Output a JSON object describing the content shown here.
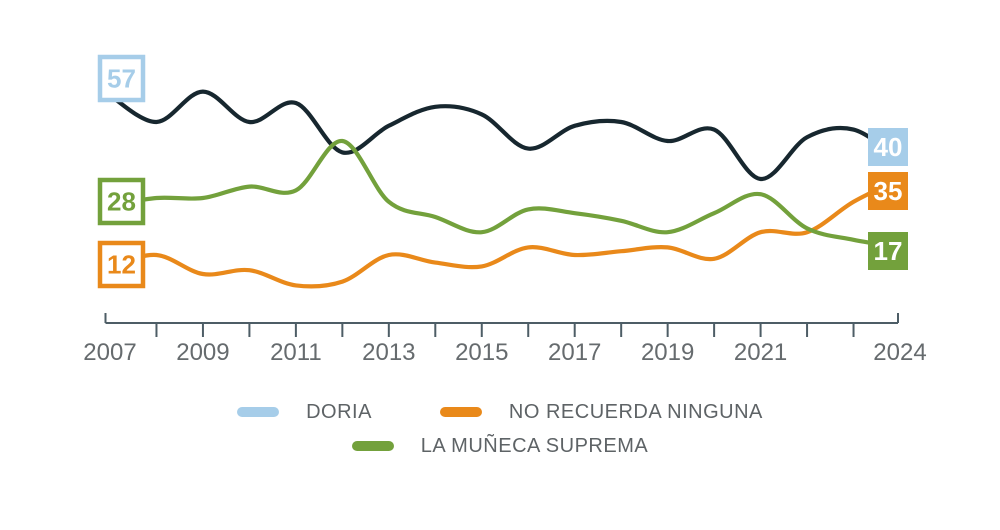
{
  "chart_data": {
    "type": "line",
    "title": "",
    "xlabel": "",
    "ylabel": "",
    "x": [
      2007,
      2008,
      2009,
      2010,
      2011,
      2012,
      2013,
      2014,
      2015,
      2016,
      2017,
      2018,
      2019,
      2020,
      2021,
      2022,
      2023,
      2024
    ],
    "x_axis_tick_labels": [
      "2007",
      "2009",
      "2011",
      "2013",
      "2015",
      "2017",
      "2019",
      "2021",
      "2024"
    ],
    "x_axis_tick_label_years": [
      2007,
      2009,
      2011,
      2013,
      2015,
      2017,
      2019,
      2021,
      2024
    ],
    "xlim": [
      2007,
      2024
    ],
    "ylim": [
      0,
      65
    ],
    "grid": false,
    "legend_position": "bottom",
    "series": [
      {
        "name": "DORIA",
        "line_color": "#17272f",
        "accent_color": "#a6cde9",
        "start_value_label": "57",
        "end_value_label": "40",
        "values": [
          57,
          50,
          58,
          50,
          55,
          42,
          49,
          54,
          52,
          43,
          49,
          50,
          45,
          48,
          35,
          46,
          48,
          40
        ]
      },
      {
        "name": "NO RECUERDA NINGUNA",
        "line_color": "#e9891a",
        "accent_color": "#e9891a",
        "start_value_label": "12",
        "end_value_label": "35",
        "values": [
          12,
          15,
          10,
          11,
          7,
          8,
          15,
          13,
          12,
          17,
          15,
          16,
          17,
          14,
          21,
          21,
          29,
          35
        ]
      },
      {
        "name": "LA MUÑECA SUPREMA",
        "line_color": "#73a13c",
        "accent_color": "#73a13c",
        "start_value_label": "28",
        "end_value_label": "17",
        "values": [
          28,
          30,
          30,
          33,
          32,
          45,
          29,
          25,
          21,
          27,
          26,
          24,
          21,
          26,
          31,
          22,
          19,
          17
        ]
      }
    ]
  },
  "axis": {
    "line_color": "#4d5d66",
    "tick_label_color": "#666b6e"
  },
  "legend": {
    "rows": [
      [
        {
          "label": "DORIA",
          "color": "#a6cde9"
        },
        {
          "label": "NO RECUERDA NINGUNA",
          "color": "#e9891a"
        }
      ],
      [
        {
          "label": "LA MUÑECA SUPREMA",
          "color": "#73a13c"
        }
      ]
    ]
  }
}
